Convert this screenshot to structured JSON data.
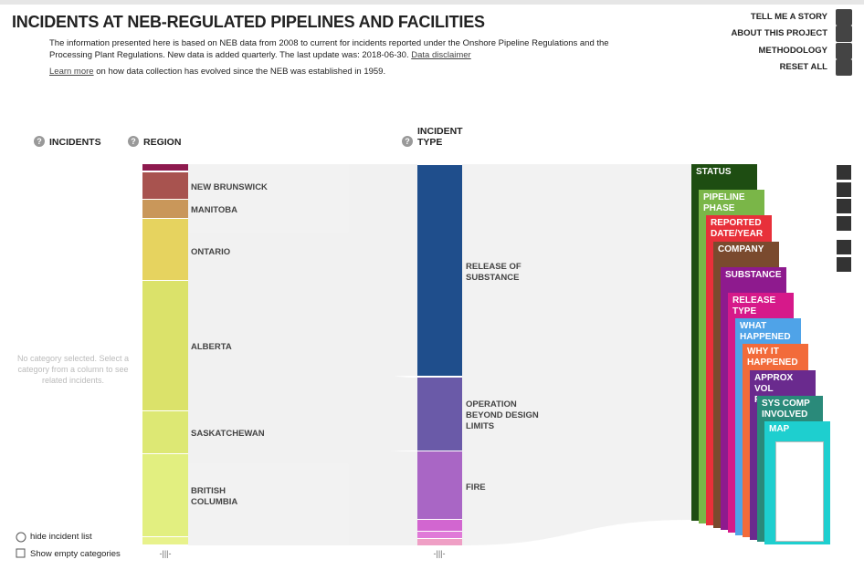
{
  "header": {
    "title": "INCIDENTS AT NEB-REGULATED PIPELINES AND FACILITIES",
    "description": "The information presented here is based on NEB data from 2008 to current for incidents reported under the Onshore Pipeline Regulations and the Processing Plant Regulations. New data is added quarterly. The last update was: 2018-06-30.",
    "disclaimer_link": "Data disclaimer",
    "learn_more_link": "Learn more",
    "learn_more_text": "on how data collection has evolved since the NEB was established in 1959."
  },
  "menu": [
    "TELL ME A STORY",
    "ABOUT THIS PROJECT",
    "METHODOLOGY",
    "RESET ALL"
  ],
  "columns": {
    "incidents": "INCIDENTS",
    "region": "REGION",
    "incident_type": "INCIDENT TYPE"
  },
  "empty_message": "No category selected. Select a category from a column to see related incidents.",
  "regions": [
    "NEW BRUNSWICK",
    "MANITOBA",
    "ONTARIO",
    "ALBERTA",
    "SASKATCHEWAN",
    "BRITISH COLUMBIA"
  ],
  "incident_types": [
    "RELEASE OF SUBSTANCE",
    "OPERATION BEYOND DESIGN LIMITS",
    "FIRE"
  ],
  "cards": [
    "STATUS",
    "PIPELINE PHASE",
    "REPORTED DATE/YEAR",
    "COMPANY",
    "SUBSTANCE",
    "RELEASE TYPE",
    "WHAT HAPPENED",
    "WHY IT HAPPENED",
    "APPROX VOL RELEASED",
    "SYS COMP INVOLVED",
    "MAP"
  ],
  "controls": {
    "hide_list": "hide incident list",
    "show_empty": "Show empty categories"
  }
}
